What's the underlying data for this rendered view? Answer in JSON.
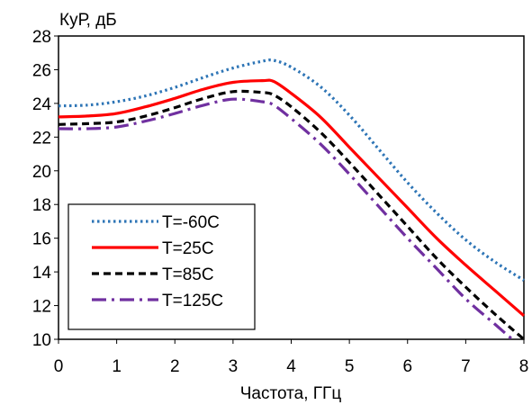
{
  "chart_data": {
    "type": "line",
    "title": "",
    "xlabel": "Частота, ГГц",
    "ylabel": "КуР, дБ",
    "xlim": [
      0,
      8
    ],
    "ylim": [
      10,
      28
    ],
    "xticks": [
      0,
      1,
      2,
      3,
      4,
      5,
      6,
      7,
      8
    ],
    "yticks": [
      10,
      12,
      14,
      16,
      18,
      20,
      22,
      24,
      26,
      28
    ],
    "grid": false,
    "legend_position": "bottom-left",
    "series": [
      {
        "name": "T=-60C",
        "color": "#2e75b6",
        "dash": "dotted",
        "x": [
          0,
          0.5,
          1,
          1.5,
          2,
          2.5,
          3,
          3.5,
          3.7,
          4,
          4.5,
          5,
          5.5,
          6,
          6.5,
          7,
          7.5,
          8
        ],
        "y": [
          23.85,
          23.9,
          24.1,
          24.45,
          24.95,
          25.55,
          26.1,
          26.5,
          26.55,
          26.15,
          25.0,
          23.3,
          21.3,
          19.3,
          17.5,
          15.9,
          14.6,
          13.5
        ]
      },
      {
        "name": "T=25C",
        "color": "#ff0000",
        "dash": "solid",
        "x": [
          0,
          0.5,
          1,
          1.5,
          2,
          2.5,
          3,
          3.5,
          3.7,
          4,
          4.5,
          5,
          5.5,
          6,
          6.5,
          7,
          7.5,
          8
        ],
        "y": [
          23.2,
          23.25,
          23.4,
          23.8,
          24.3,
          24.85,
          25.25,
          25.35,
          25.3,
          24.6,
          23.2,
          21.4,
          19.6,
          17.8,
          16.0,
          14.4,
          12.9,
          11.4
        ]
      },
      {
        "name": "T=85C",
        "color": "#000000",
        "dash": "dashed",
        "x": [
          0,
          0.5,
          1,
          1.5,
          2,
          2.5,
          3,
          3.5,
          3.7,
          4,
          4.5,
          5,
          5.5,
          6,
          6.5,
          7,
          7.5,
          8
        ],
        "y": [
          22.75,
          22.8,
          22.9,
          23.25,
          23.75,
          24.3,
          24.7,
          24.65,
          24.5,
          23.8,
          22.3,
          20.5,
          18.6,
          16.7,
          14.8,
          13.1,
          11.5,
          10.0
        ]
      },
      {
        "name": "T=125C",
        "color": "#7030a0",
        "dash": "dashdot",
        "x": [
          0,
          0.5,
          1,
          1.5,
          2,
          2.5,
          3,
          3.5,
          3.7,
          4,
          4.5,
          5,
          5.5,
          6,
          6.5,
          7,
          7.5,
          7.8
        ],
        "y": [
          22.5,
          22.5,
          22.6,
          22.95,
          23.4,
          23.9,
          24.25,
          24.1,
          23.9,
          23.1,
          21.6,
          19.8,
          17.9,
          16.0,
          14.2,
          12.4,
          10.9,
          10.0
        ]
      }
    ]
  }
}
